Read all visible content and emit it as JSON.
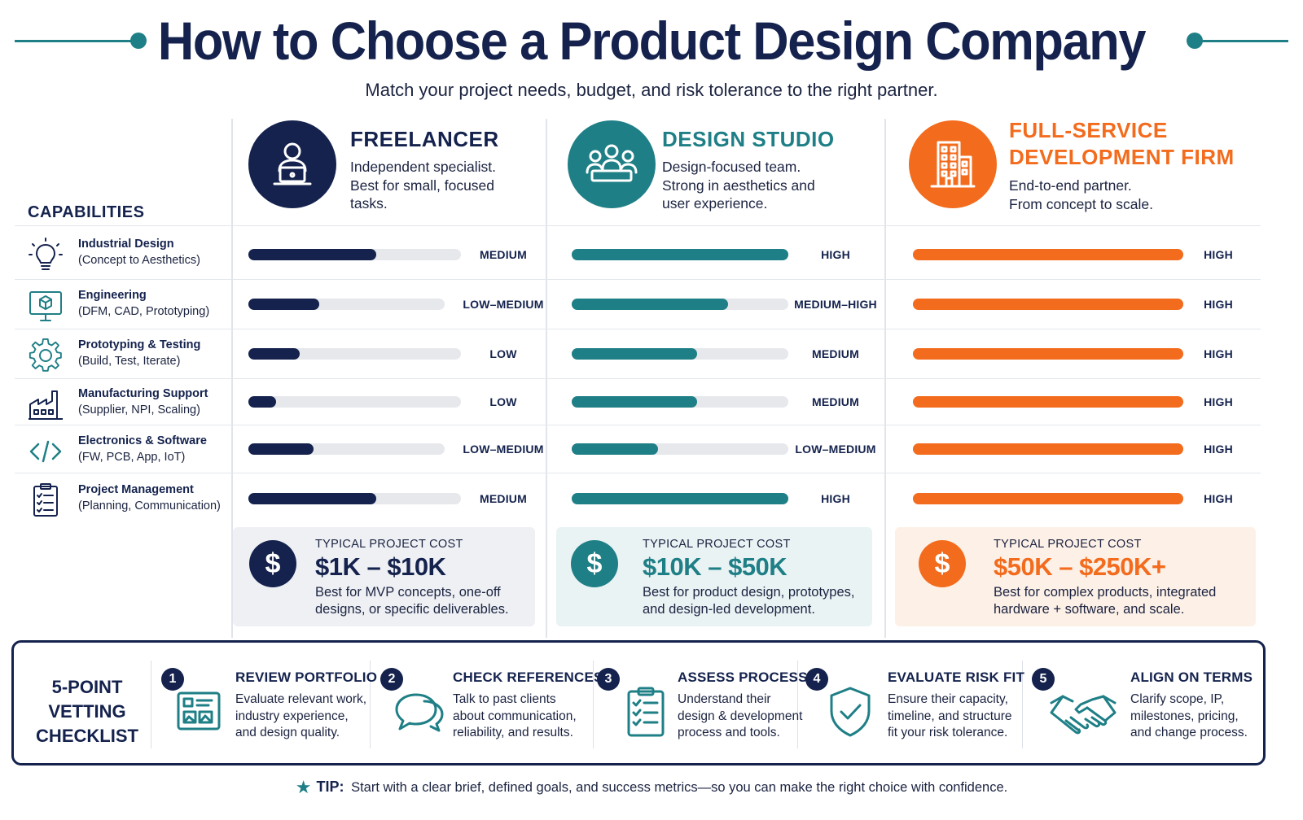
{
  "header": {
    "title": "How to Choose a Product Design Company",
    "subtitle": "Match your project needs, budget, and risk tolerance to the right partner."
  },
  "colors": {
    "navy": "#14224d",
    "teal": "#1f7f86",
    "orange": "#f36b1c",
    "track": "#e6e8ec"
  },
  "capabilities_title": "CAPABILITIES",
  "columns": [
    {
      "name_line1": "FREELANCER",
      "name_line2": "",
      "desc": [
        "Independent specialist.",
        "Best for small, focused",
        "tasks."
      ],
      "icon": "freelancer-laptop-icon"
    },
    {
      "name_line1": "DESIGN STUDIO",
      "name_line2": "",
      "desc": [
        "Design-focused team.",
        "Strong in aesthetics and",
        "user experience."
      ],
      "icon": "team-meeting-icon"
    },
    {
      "name_line1": "FULL-SERVICE",
      "name_line2": "DEVELOPMENT FIRM",
      "desc": [
        "End-to-end partner.",
        "From concept to scale."
      ],
      "icon": "office-building-icon"
    }
  ],
  "capabilities": [
    {
      "name": "Industrial Design",
      "sub": "(Concept to Aesthetics)",
      "icon": "lightbulb-icon",
      "levels": [
        {
          "label": "MEDIUM",
          "fill": 0.6
        },
        {
          "label": "HIGH",
          "fill": 1.0
        },
        {
          "label": "HIGH",
          "fill": 1.0
        }
      ]
    },
    {
      "name": "Engineering",
      "sub": "(DFM, CAD, Prototyping)",
      "icon": "monitor-cube-icon",
      "levels": [
        {
          "label": "LOW–MEDIUM",
          "fill": 0.36
        },
        {
          "label": "MEDIUM–HIGH",
          "fill": 0.72
        },
        {
          "label": "HIGH",
          "fill": 1.0
        }
      ]
    },
    {
      "name": "Prototyping & Testing",
      "sub": "(Build, Test, Iterate)",
      "icon": "gear-icon",
      "levels": [
        {
          "label": "LOW",
          "fill": 0.24
        },
        {
          "label": "MEDIUM",
          "fill": 0.58
        },
        {
          "label": "HIGH",
          "fill": 1.0
        }
      ]
    },
    {
      "name": "Manufacturing Support",
      "sub": "(Supplier, NPI, Scaling)",
      "icon": "factory-icon",
      "levels": [
        {
          "label": "LOW",
          "fill": 0.13
        },
        {
          "label": "MEDIUM",
          "fill": 0.58
        },
        {
          "label": "HIGH",
          "fill": 1.0
        }
      ]
    },
    {
      "name": "Electronics & Software",
      "sub": "(FW, PCB, App, IoT)",
      "icon": "code-brackets-icon",
      "levels": [
        {
          "label": "LOW–MEDIUM",
          "fill": 0.33
        },
        {
          "label": "LOW–MEDIUM",
          "fill": 0.4
        },
        {
          "label": "HIGH",
          "fill": 1.0
        }
      ]
    },
    {
      "name": "Project Management",
      "sub": "(Planning, Communication)",
      "icon": "clipboard-list-icon",
      "levels": [
        {
          "label": "MEDIUM",
          "fill": 0.6
        },
        {
          "label": "HIGH",
          "fill": 1.0
        },
        {
          "label": "HIGH",
          "fill": 1.0
        }
      ]
    }
  ],
  "costs": [
    {
      "label": "TYPICAL PROJECT COST",
      "value": "$1K – $10K",
      "desc": [
        "Best for MVP concepts, one-off",
        "designs, or specific deliverables."
      ],
      "symbol": "$"
    },
    {
      "label": "TYPICAL PROJECT COST",
      "value": "$10K – $50K",
      "desc": [
        "Best for product design, prototypes,",
        "and design-led development."
      ],
      "symbol": "$"
    },
    {
      "label": "TYPICAL PROJECT COST",
      "value": "$50K – $250K+",
      "desc": [
        "Best for complex products, integrated",
        "hardware + software, and scale."
      ],
      "symbol": "$"
    }
  ],
  "checklist": {
    "title_line1": "5-POINT VETTING",
    "title_line2": "CHECKLIST",
    "steps": [
      {
        "num": "1",
        "title": "REVIEW PORTFOLIO",
        "desc": [
          "Evaluate relevant work,",
          "industry experience,",
          "and design quality."
        ],
        "icon": "portfolio-card-icon"
      },
      {
        "num": "2",
        "title": "CHECK REFERENCES",
        "desc": [
          "Talk to past clients",
          "about communication,",
          "reliability, and results."
        ],
        "icon": "chat-bubbles-icon"
      },
      {
        "num": "3",
        "title": "ASSESS PROCESS",
        "desc": [
          "Understand their",
          "design & development",
          "process and tools."
        ],
        "icon": "checklist-clipboard-icon"
      },
      {
        "num": "4",
        "title": "EVALUATE RISK FIT",
        "desc": [
          "Ensure their capacity,",
          "timeline, and structure",
          "fit your risk tolerance."
        ],
        "icon": "shield-check-icon"
      },
      {
        "num": "5",
        "title": "ALIGN ON TERMS",
        "desc": [
          "Clarify scope, IP,",
          "milestones, pricing,",
          "and change process."
        ],
        "icon": "handshake-icon"
      }
    ]
  },
  "tip": {
    "label": "TIP:",
    "text": "Start with a clear brief, defined goals, and success metrics—so you can make the right choice with confidence."
  }
}
